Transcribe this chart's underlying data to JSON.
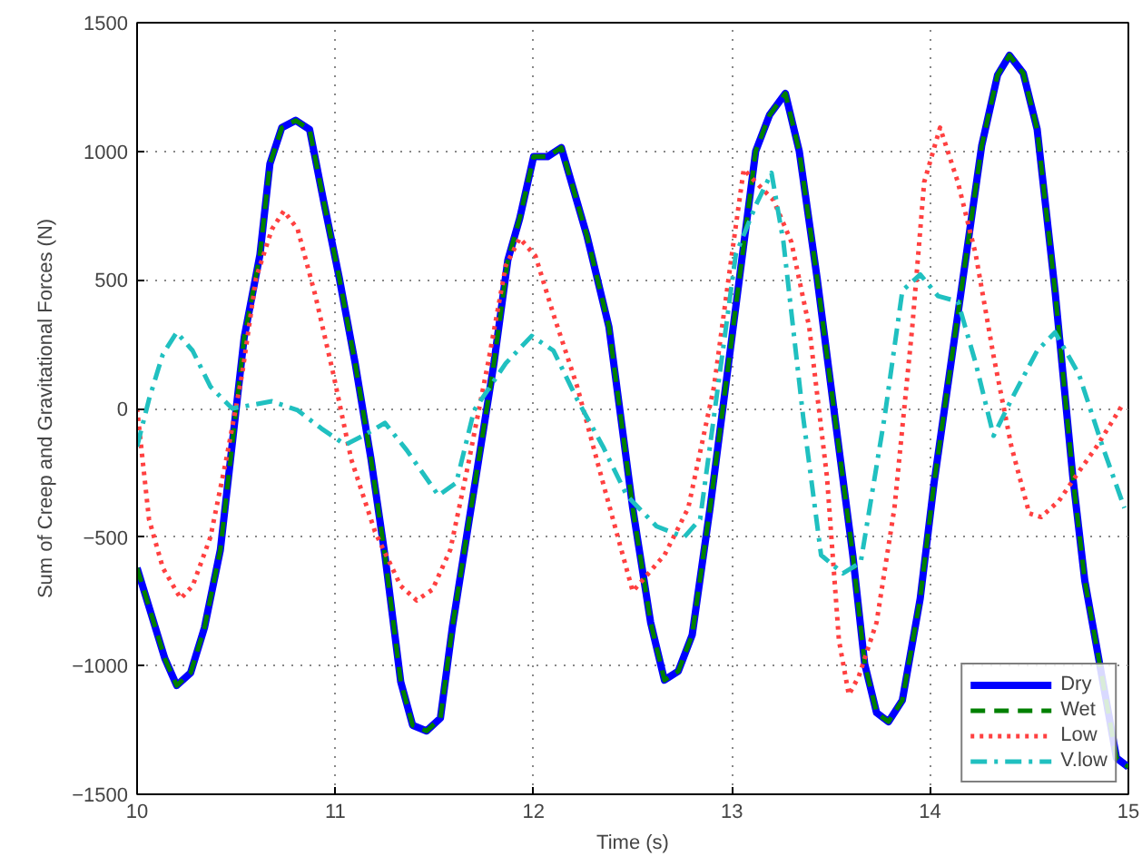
{
  "chart_data": {
    "type": "line",
    "xlabel": "Time (s)",
    "ylabel": "Sum of Creep and Gravitational Forces (N)",
    "xlim": [
      10,
      15
    ],
    "ylim": [
      -1500,
      1500
    ],
    "xticks": [
      10,
      11,
      12,
      13,
      14,
      15
    ],
    "yticks": [
      -1500,
      -1000,
      -500,
      0,
      500,
      1000,
      1500
    ],
    "grid": true,
    "legend": "bottom right",
    "marker": "none",
    "series": [
      {
        "name": "Dry",
        "color": "#0000ff",
        "line_style": "solid",
        "x": [
          10.0,
          10.14,
          10.2,
          10.27,
          10.34,
          10.42,
          10.54,
          10.62,
          10.67,
          10.73,
          10.8,
          10.87,
          10.94,
          11.02,
          11.1,
          11.18,
          11.25,
          11.33,
          11.39,
          11.46,
          11.53,
          11.59,
          11.67,
          11.8,
          11.87,
          11.93,
          12.0,
          12.07,
          12.14,
          12.27,
          12.38,
          12.5,
          12.59,
          12.66,
          12.73,
          12.8,
          12.89,
          13.0,
          13.12,
          13.19,
          13.27,
          13.34,
          13.43,
          13.52,
          13.61,
          13.67,
          13.73,
          13.79,
          13.86,
          13.95,
          14.02,
          14.14,
          14.26,
          14.34,
          14.4,
          14.47,
          14.54,
          14.63,
          14.72,
          14.78,
          14.94,
          15.0
        ],
        "values": [
          -620,
          -972,
          -1077,
          -1028,
          -852,
          -550,
          275,
          599,
          951,
          1092,
          1120,
          1085,
          810,
          507,
          176,
          -197,
          -570,
          -1063,
          -1232,
          -1254,
          -1204,
          -852,
          -458,
          176,
          577,
          739,
          979,
          979,
          1014,
          669,
          317,
          -387,
          -831,
          -1056,
          -1021,
          -880,
          -387,
          275,
          1000,
          1141,
          1225,
          1000,
          507,
          -35,
          -570,
          -993,
          -1183,
          -1218,
          -1134,
          -739,
          -289,
          366,
          1021,
          1296,
          1373,
          1303,
          1085,
          458,
          -268,
          -669,
          -1359,
          -1394
        ]
      },
      {
        "name": "Wet",
        "color": "#008000",
        "line_style": "dashed",
        "x": [
          10.0,
          10.14,
          10.2,
          10.27,
          10.34,
          10.42,
          10.54,
          10.62,
          10.67,
          10.73,
          10.8,
          10.87,
          10.94,
          11.02,
          11.1,
          11.18,
          11.25,
          11.33,
          11.39,
          11.46,
          11.53,
          11.59,
          11.67,
          11.8,
          11.87,
          11.93,
          12.0,
          12.07,
          12.14,
          12.27,
          12.38,
          12.5,
          12.59,
          12.66,
          12.73,
          12.8,
          12.89,
          13.0,
          13.12,
          13.19,
          13.27,
          13.34,
          13.43,
          13.52,
          13.61,
          13.67,
          13.73,
          13.79,
          13.86,
          13.95,
          14.02,
          14.14,
          14.26,
          14.34,
          14.4,
          14.47,
          14.54,
          14.63,
          14.72,
          14.78,
          14.94,
          15.0
        ],
        "values": [
          -620,
          -972,
          -1077,
          -1028,
          -852,
          -550,
          275,
          599,
          951,
          1092,
          1120,
          1085,
          810,
          507,
          176,
          -197,
          -570,
          -1063,
          -1232,
          -1254,
          -1204,
          -852,
          -458,
          176,
          577,
          739,
          979,
          979,
          1014,
          669,
          317,
          -387,
          -831,
          -1056,
          -1021,
          -880,
          -387,
          275,
          1000,
          1141,
          1225,
          1000,
          507,
          -35,
          -570,
          -993,
          -1183,
          -1218,
          -1134,
          -739,
          -289,
          366,
          1021,
          1296,
          1373,
          1303,
          1085,
          458,
          -268,
          -669,
          -1359,
          -1394
        ]
      },
      {
        "name": "Low",
        "color": "#ff4040",
        "line_style": "dotted",
        "x": [
          10.0,
          10.06,
          10.13,
          10.22,
          10.28,
          10.37,
          10.45,
          10.53,
          10.6,
          10.68,
          10.74,
          10.81,
          10.9,
          10.99,
          11.08,
          11.2,
          11.33,
          11.41,
          11.49,
          11.58,
          11.67,
          11.77,
          11.86,
          11.93,
          12.01,
          12.1,
          12.22,
          12.35,
          12.5,
          12.66,
          12.78,
          12.91,
          13.0,
          13.06,
          13.12,
          13.21,
          13.3,
          13.39,
          13.48,
          13.54,
          13.59,
          13.64,
          13.73,
          13.82,
          13.91,
          13.97,
          14.05,
          14.14,
          14.23,
          14.32,
          14.41,
          14.5,
          14.56,
          14.65,
          14.75,
          14.84,
          14.97
        ],
        "values": [
          0,
          -430,
          -620,
          -739,
          -690,
          -500,
          -197,
          134,
          507,
          697,
          768,
          697,
          437,
          134,
          -197,
          -479,
          -690,
          -746,
          -704,
          -549,
          -218,
          176,
          556,
          662,
          592,
          366,
          85,
          -289,
          -711,
          -570,
          -387,
          85,
          599,
          930,
          880,
          810,
          648,
          317,
          -268,
          -901,
          -1113,
          -1042,
          -831,
          -387,
          317,
          880,
          1092,
          880,
          599,
          204,
          -148,
          -408,
          -422,
          -359,
          -246,
          -148,
          14
        ]
      },
      {
        "name": "V.low",
        "color": "#20c0c0",
        "line_style": "dashdot",
        "x": [
          10.0,
          10.06,
          10.13,
          10.2,
          10.28,
          10.37,
          10.48,
          10.68,
          10.81,
          10.93,
          11.05,
          11.14,
          11.25,
          11.36,
          11.52,
          11.61,
          11.7,
          11.86,
          11.99,
          12.1,
          12.22,
          12.35,
          12.47,
          12.62,
          12.76,
          12.84,
          12.93,
          13.02,
          13.12,
          13.2,
          13.26,
          13.36,
          13.45,
          13.56,
          13.65,
          13.77,
          13.86,
          13.95,
          14.04,
          14.14,
          14.23,
          14.32,
          14.41,
          14.54,
          14.63,
          14.75,
          14.87,
          14.98
        ],
        "values": [
          -148,
          35,
          211,
          296,
          225,
          85,
          0,
          28,
          -7,
          -78,
          -141,
          -106,
          -56,
          -162,
          -338,
          -289,
          -7,
          176,
          282,
          225,
          35,
          -148,
          -338,
          -458,
          -500,
          -430,
          85,
          599,
          789,
          916,
          648,
          -35,
          -570,
          -641,
          -598,
          -35,
          458,
          521,
          437,
          416,
          176,
          -106,
          35,
          225,
          296,
          134,
          -148,
          -387
        ]
      }
    ]
  }
}
